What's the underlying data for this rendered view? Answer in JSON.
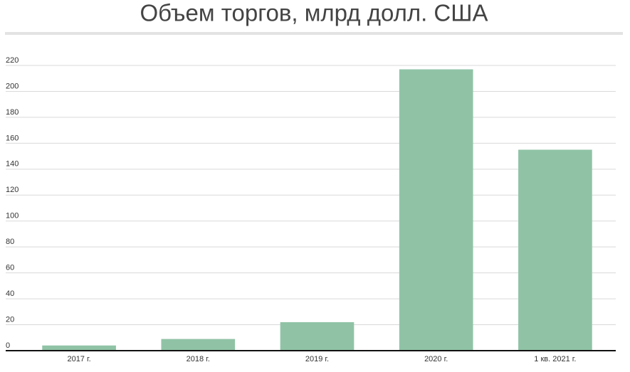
{
  "chart_data": {
    "type": "bar",
    "title": "Объем торгов, млрд долл. США",
    "categories": [
      "2017 г.",
      "2018 г.",
      "2019 г.",
      "2020 г.",
      "1 кв. 2021 г."
    ],
    "values": [
      4,
      9,
      22,
      217,
      155
    ],
    "color": "#90c3a6",
    "ylim": [
      0,
      220
    ],
    "yticks": [
      0,
      20,
      40,
      60,
      80,
      100,
      120,
      140,
      160,
      180,
      200,
      220
    ],
    "grid": true
  }
}
